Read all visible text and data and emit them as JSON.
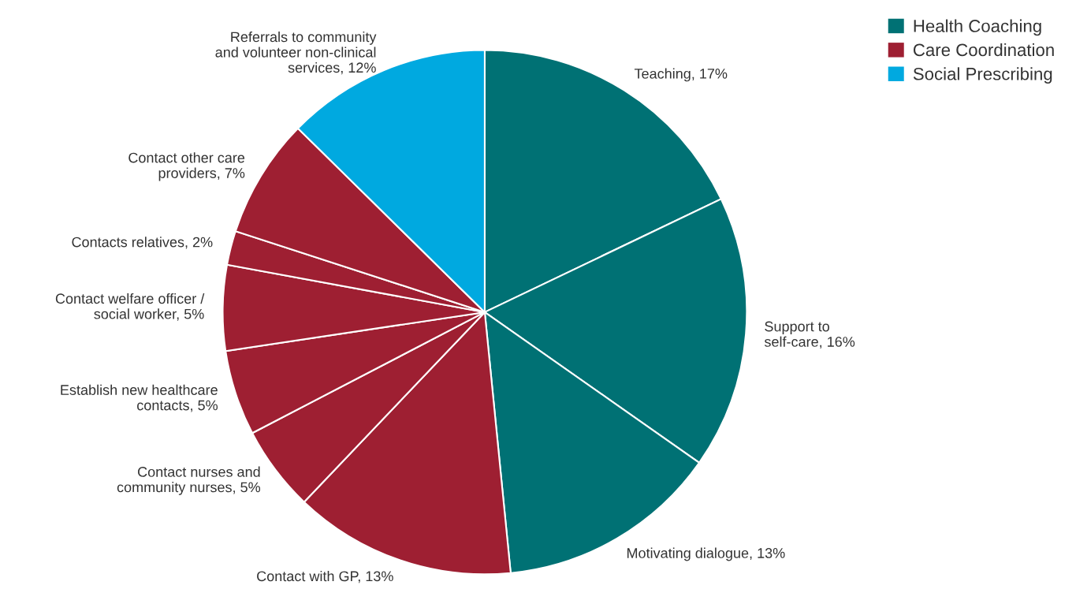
{
  "chart_data": {
    "type": "pie",
    "categories": [
      "Teaching, 17%",
      "Support to\nself-care, 16%",
      "Motivating dialogue, 13%",
      "Contact with GP, 13%",
      "Contact nurses and\ncommunity nurses, 5%",
      "Establish new healthcare\ncontacts, 5%",
      "Contact welfare officer /\nsocial worker, 5%",
      "Contacts relatives, 2%",
      "Contact other care\nproviders, 7%",
      "Referrals to community\nand volunteer non-clinical\nservices, 12%"
    ],
    "values": [
      17,
      16,
      13,
      13,
      5,
      5,
      5,
      2,
      7,
      12
    ],
    "colors": [
      "#007174",
      "#007174",
      "#007174",
      "#9e1f32",
      "#9e1f32",
      "#9e1f32",
      "#9e1f32",
      "#9e1f32",
      "#9e1f32",
      "#00a9e0"
    ],
    "annotations": [
      "Health Coaching",
      "Care Coordination",
      "Social Prescribing"
    ]
  }
}
